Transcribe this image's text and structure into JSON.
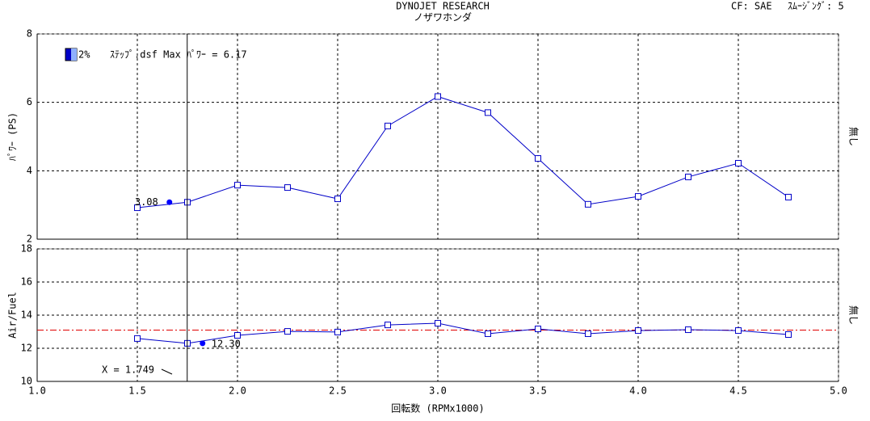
{
  "header": {
    "title": "DYNOJET  RESEARCH",
    "subtitle": "ノザワホンダ",
    "correction": "CF: SAE",
    "smoothing": "ｽﾑｰｼﾞﾝｸﾞ: 5"
  },
  "chart_data": [
    {
      "type": "line",
      "ylabel": "ﾊﾟﾜｰ (PS)",
      "side_label": "無し",
      "legend_text": "ｽﾃｯﾌﾟ.dsf Max ﾊﾟﾜｰ = 6.17",
      "x": [
        1.5,
        1.75,
        2.0,
        2.25,
        2.5,
        2.75,
        3.0,
        3.25,
        3.5,
        3.75,
        4.0,
        4.25,
        4.5,
        4.75
      ],
      "series": [
        {
          "name": "2%",
          "color": "#0000c8",
          "values": [
            2.92,
            3.08,
            3.58,
            3.51,
            3.18,
            5.31,
            6.17,
            5.7,
            4.36,
            3.02,
            3.25,
            3.82,
            4.22,
            3.23
          ]
        }
      ],
      "xlim": [
        1,
        5
      ],
      "xticks": [
        1,
        1.5,
        2,
        2.5,
        3,
        3.5,
        4,
        4.5,
        5
      ],
      "ylim": [
        2,
        8
      ],
      "yticks": [
        2,
        4,
        6,
        8
      ],
      "grid": true,
      "cursor_x": 1.749,
      "cursor_value": 3.08
    },
    {
      "type": "line",
      "ylabel": "Air/Fuel",
      "side_label": "無し",
      "xlabel": "回転数 (RPMx1000)",
      "x": [
        1.5,
        1.75,
        2.0,
        2.25,
        2.5,
        2.75,
        3.0,
        3.25,
        3.5,
        3.75,
        4.0,
        4.25,
        4.5,
        4.75
      ],
      "series": [
        {
          "name": "2%",
          "color": "#0000c8",
          "values": [
            12.59,
            12.3,
            12.78,
            13.02,
            12.98,
            13.41,
            13.51,
            12.88,
            13.17,
            12.88,
            13.07,
            13.12,
            13.07,
            12.83
          ]
        }
      ],
      "xlim": [
        1,
        5
      ],
      "xticks": [
        {
          "value": 1,
          "label": "1.0"
        },
        {
          "value": 1.5,
          "label": "1.5"
        },
        {
          "value": 2,
          "label": "2.0"
        },
        {
          "value": 2.5,
          "label": "2.5"
        },
        {
          "value": 3,
          "label": "3.0"
        },
        {
          "value": 3.5,
          "label": "3.5"
        },
        {
          "value": 4,
          "label": "4.0"
        },
        {
          "value": 4.5,
          "label": "4.5"
        },
        {
          "value": 5,
          "label": "5.0"
        }
      ],
      "ylim": [
        10,
        18
      ],
      "yticks": [
        10,
        12,
        14,
        16,
        18
      ],
      "grid": true,
      "ref_line": 13.1,
      "ref_color": "#e00000",
      "cursor_x": 1.749,
      "cursor_value": 12.3,
      "cursor_value_label": "12.30",
      "cursor_label": "X = 1.749"
    }
  ]
}
